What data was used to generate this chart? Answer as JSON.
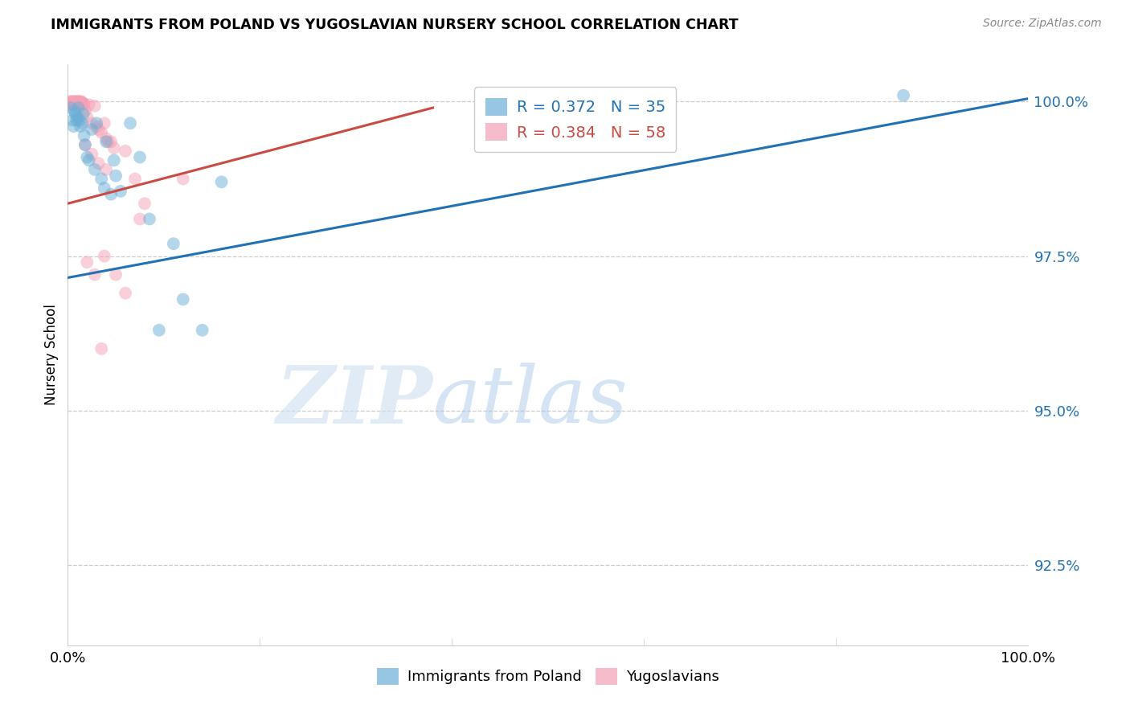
{
  "title": "IMMIGRANTS FROM POLAND VS YUGOSLAVIAN NURSERY SCHOOL CORRELATION CHART",
  "source": "Source: ZipAtlas.com",
  "ylabel": "Nursery School",
  "ytick_labels": [
    "100.0%",
    "97.5%",
    "95.0%",
    "92.5%"
  ],
  "ytick_values": [
    1.0,
    0.975,
    0.95,
    0.925
  ],
  "xlim": [
    0.0,
    1.0
  ],
  "ylim": [
    0.912,
    1.006
  ],
  "legend_blue_r": "R = 0.372",
  "legend_blue_n": "N = 35",
  "legend_pink_r": "R = 0.384",
  "legend_pink_n": "N = 58",
  "legend_blue_label": "Immigrants from Poland",
  "legend_pink_label": "Yugoslavians",
  "blue_color": "#6baed6",
  "pink_color": "#f4a0b5",
  "blue_line_color": "#2171b5",
  "pink_line_color": "#cb4a42",
  "watermark_zip": "ZIP",
  "watermark_atlas": "atlas",
  "blue_scatter": [
    [
      0.003,
      0.999
    ],
    [
      0.005,
      0.997
    ],
    [
      0.006,
      0.996
    ],
    [
      0.007,
      0.9985
    ],
    [
      0.008,
      0.998
    ],
    [
      0.009,
      0.997
    ],
    [
      0.01,
      0.9975
    ],
    [
      0.011,
      0.999
    ],
    [
      0.012,
      0.997
    ],
    [
      0.013,
      0.996
    ],
    [
      0.015,
      0.9965
    ],
    [
      0.016,
      0.998
    ],
    [
      0.017,
      0.9945
    ],
    [
      0.018,
      0.993
    ],
    [
      0.02,
      0.991
    ],
    [
      0.022,
      0.9905
    ],
    [
      0.025,
      0.9955
    ],
    [
      0.028,
      0.989
    ],
    [
      0.03,
      0.9965
    ],
    [
      0.035,
      0.9875
    ],
    [
      0.038,
      0.986
    ],
    [
      0.04,
      0.9935
    ],
    [
      0.045,
      0.985
    ],
    [
      0.048,
      0.9905
    ],
    [
      0.05,
      0.988
    ],
    [
      0.055,
      0.9855
    ],
    [
      0.065,
      0.9965
    ],
    [
      0.075,
      0.991
    ],
    [
      0.085,
      0.981
    ],
    [
      0.095,
      0.963
    ],
    [
      0.11,
      0.977
    ],
    [
      0.12,
      0.968
    ],
    [
      0.14,
      0.963
    ],
    [
      0.87,
      1.001
    ],
    [
      0.16,
      0.987
    ]
  ],
  "pink_scatter": [
    [
      0.002,
      1.0
    ],
    [
      0.003,
      0.9998
    ],
    [
      0.003,
      0.9995
    ],
    [
      0.004,
      1.0
    ],
    [
      0.004,
      0.9997
    ],
    [
      0.005,
      1.0
    ],
    [
      0.005,
      0.9998
    ],
    [
      0.005,
      0.9996
    ],
    [
      0.006,
      1.0
    ],
    [
      0.006,
      0.9998
    ],
    [
      0.007,
      1.0
    ],
    [
      0.007,
      0.9998
    ],
    [
      0.008,
      1.0
    ],
    [
      0.008,
      0.9997
    ],
    [
      0.009,
      1.0
    ],
    [
      0.009,
      0.9998
    ],
    [
      0.01,
      1.0
    ],
    [
      0.01,
      0.9998
    ],
    [
      0.01,
      0.9996
    ],
    [
      0.011,
      1.0
    ],
    [
      0.011,
      0.9997
    ],
    [
      0.012,
      1.0
    ],
    [
      0.012,
      0.9997
    ],
    [
      0.013,
      1.0
    ],
    [
      0.013,
      0.9997
    ],
    [
      0.014,
      1.0
    ],
    [
      0.014,
      0.9997
    ],
    [
      0.015,
      0.9998
    ],
    [
      0.016,
      0.9997
    ],
    [
      0.017,
      0.9996
    ],
    [
      0.018,
      0.9985
    ],
    [
      0.02,
      0.9975
    ],
    [
      0.022,
      0.9995
    ],
    [
      0.025,
      0.9965
    ],
    [
      0.028,
      0.9993
    ],
    [
      0.03,
      0.996
    ],
    [
      0.032,
      0.9955
    ],
    [
      0.035,
      0.995
    ],
    [
      0.038,
      0.9965
    ],
    [
      0.04,
      0.994
    ],
    [
      0.042,
      0.9935
    ],
    [
      0.048,
      0.9925
    ],
    [
      0.018,
      0.993
    ],
    [
      0.025,
      0.9915
    ],
    [
      0.032,
      0.99
    ],
    [
      0.04,
      0.989
    ],
    [
      0.045,
      0.9935
    ],
    [
      0.06,
      0.992
    ],
    [
      0.07,
      0.9875
    ],
    [
      0.08,
      0.9835
    ],
    [
      0.02,
      0.974
    ],
    [
      0.028,
      0.972
    ],
    [
      0.038,
      0.975
    ],
    [
      0.05,
      0.972
    ],
    [
      0.06,
      0.969
    ],
    [
      0.035,
      0.96
    ],
    [
      0.075,
      0.981
    ],
    [
      0.12,
      0.9875
    ]
  ],
  "blue_trend": [
    0.0,
    1.0,
    0.9715,
    1.0005
  ],
  "pink_trend": [
    0.0,
    0.38,
    0.9835,
    0.999
  ]
}
